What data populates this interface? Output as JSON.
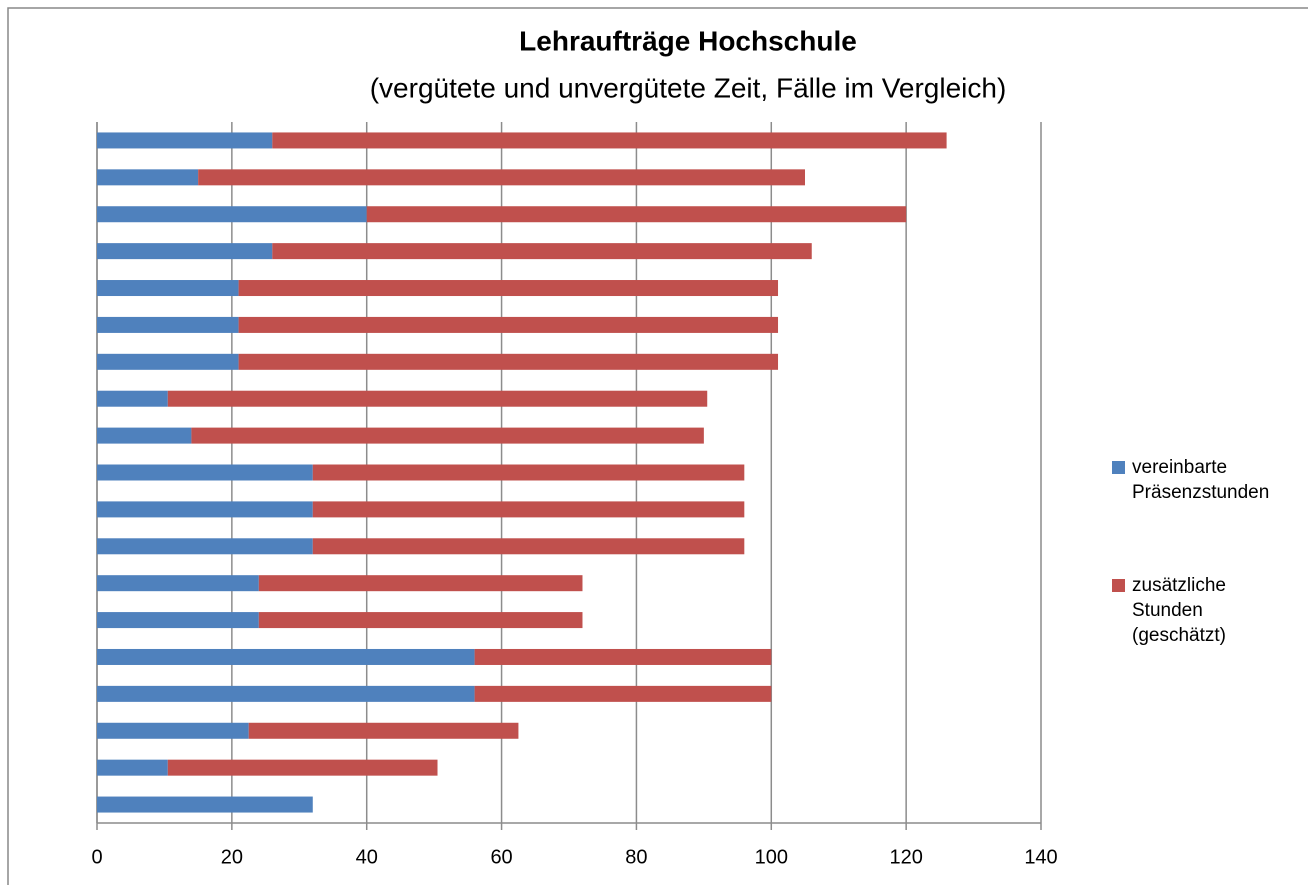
{
  "chart_data": {
    "type": "stacked-bar-horizontal",
    "title": "Lehraufträge Hochschule",
    "subtitle": "(vergütete und unvergütete Zeit, Fälle im Vergleich)",
    "categories": [
      null,
      null,
      null,
      null,
      null,
      null,
      null,
      null,
      null,
      null,
      null,
      null,
      null,
      null,
      null,
      null,
      null,
      null,
      null
    ],
    "series": [
      {
        "name": "vereinbarte Präsenzstunden",
        "color": "#4f81bd",
        "values": [
          26,
          15,
          40,
          26,
          21,
          21,
          21,
          10.5,
          14,
          32,
          32,
          32,
          24,
          24,
          56,
          56,
          22.5,
          10.5,
          32
        ]
      },
      {
        "name": "zusätzliche Stunden (geschätzt)",
        "color": "#c0504d",
        "values": [
          100,
          90,
          80,
          80,
          80,
          80,
          80,
          80,
          76,
          64,
          64,
          64,
          48,
          48,
          44,
          44,
          40,
          40,
          0
        ]
      }
    ],
    "xlim": [
      0,
      140
    ],
    "xticks": [
      0,
      20,
      40,
      60,
      80,
      100,
      120,
      140
    ],
    "grid": true,
    "legend": "right"
  }
}
